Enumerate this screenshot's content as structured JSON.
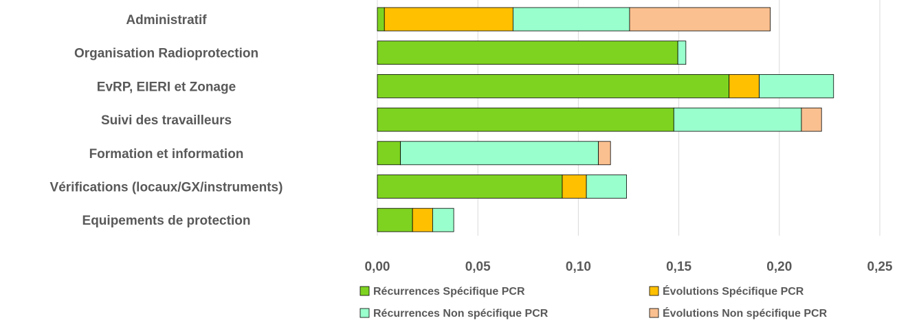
{
  "chart_data": {
    "type": "bar",
    "orientation": "horizontal",
    "stacked": true,
    "categories": [
      "Administratif",
      "Organisation Radioprotection",
      "EvRP, EIERI et Zonage",
      "Suivi des travailleurs",
      "Formation et information",
      "Vérifications (locaux/GX/instruments)",
      "Equipements de protection"
    ],
    "series": [
      {
        "name": "Récurrences Spécifique PCR",
        "color": "#7ed321",
        "values": [
          0.0035,
          0.1495,
          0.175,
          0.1475,
          0.0115,
          0.092,
          0.0175
        ]
      },
      {
        "name": "Évolutions Spécifique PCR",
        "color": "#ffc000",
        "values": [
          0.064,
          0,
          0.015,
          0,
          0,
          0.012,
          0.01
        ]
      },
      {
        "name": "Récurrences Non spécifique PCR",
        "color": "#99ffcc",
        "values": [
          0.058,
          0.004,
          0.037,
          0.0635,
          0.0985,
          0.02,
          0.0105
        ]
      },
      {
        "name": "Évolutions Non spécifique PCR",
        "color": "#fac090",
        "values": [
          0.07,
          0,
          0,
          0.01,
          0.006,
          0,
          0
        ]
      }
    ],
    "xlim": [
      0,
      0.25
    ],
    "xticks": [
      "0,00",
      "0,05",
      "0,10",
      "0,15",
      "0,20",
      "0,25"
    ],
    "xtick_values": [
      0,
      0.05,
      0.1,
      0.15,
      0.2,
      0.25
    ],
    "grid": true,
    "legend_position": "bottom",
    "title": "",
    "xlabel": "",
    "ylabel": ""
  }
}
